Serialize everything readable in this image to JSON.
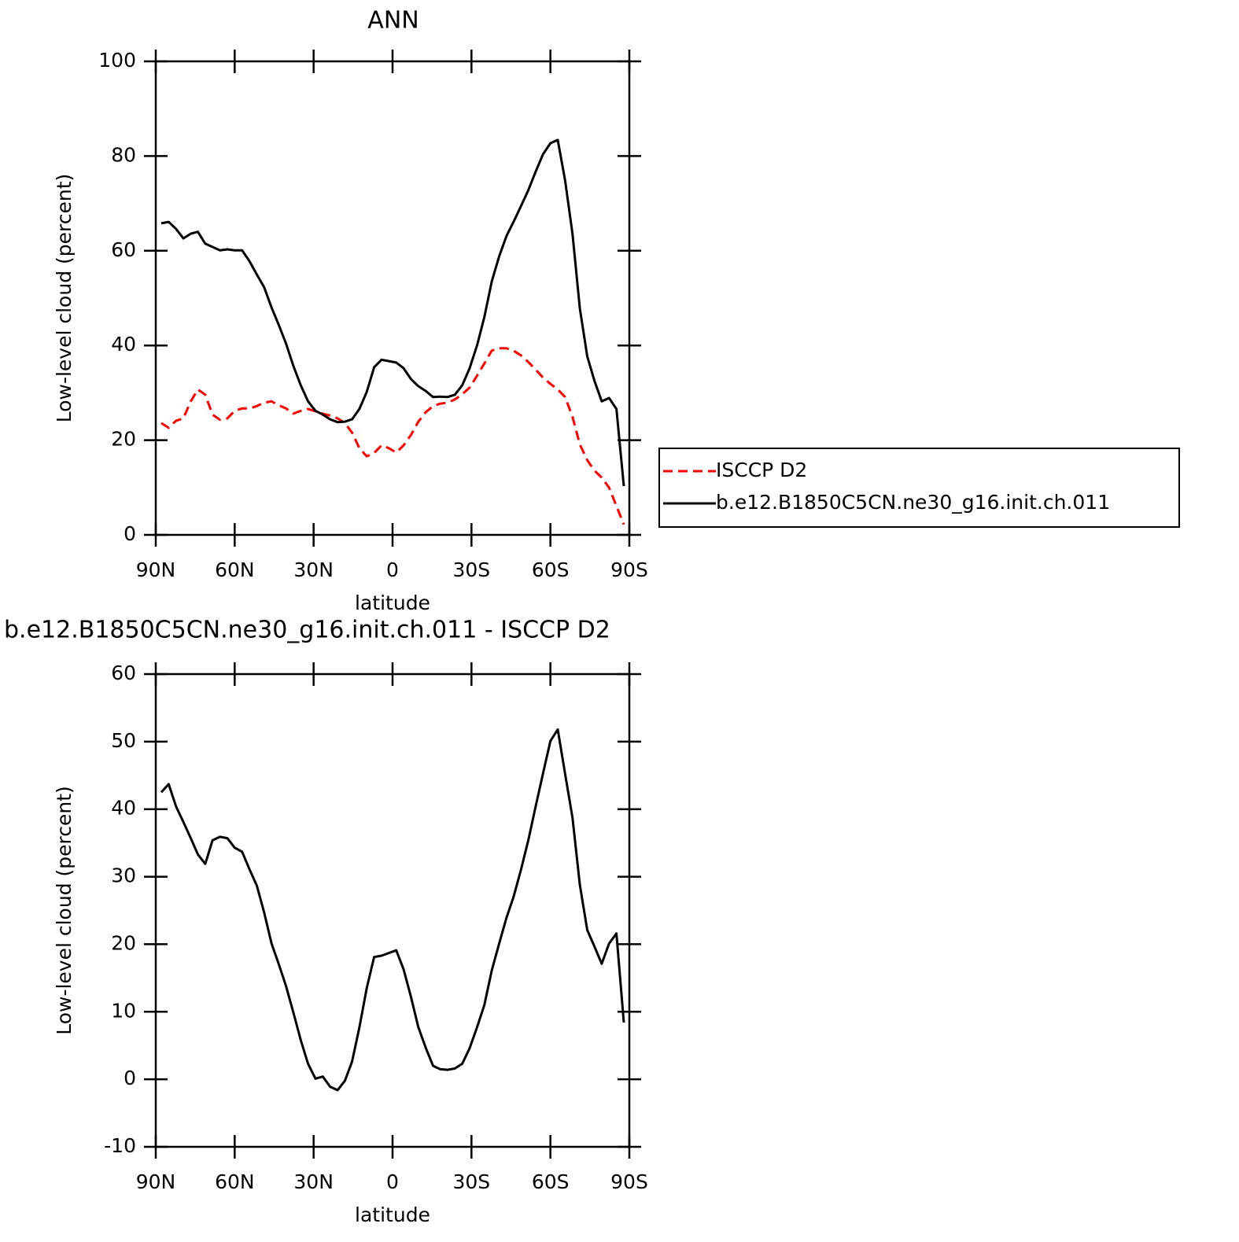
{
  "chart_data": [
    {
      "type": "line",
      "title": "ANN",
      "xlabel": "latitude",
      "ylabel": "Low-level cloud (percent)",
      "xlim": [
        90,
        -90
      ],
      "xticks": [
        {
          "value": 90,
          "label": "90N"
        },
        {
          "value": 60,
          "label": "60N"
        },
        {
          "value": 30,
          "label": "30N"
        },
        0,
        {
          "value": -30,
          "label": "30S"
        },
        {
          "value": -60,
          "label": "60S"
        },
        {
          "value": -90,
          "label": "90S"
        }
      ],
      "ylim": [
        0,
        100
      ],
      "yticks": [
        0,
        20,
        40,
        60,
        80,
        100
      ],
      "legend": "right",
      "x": [
        87.9,
        85.1,
        82.3,
        79.5,
        76.7,
        74.0,
        71.2,
        68.4,
        65.6,
        62.8,
        60.0,
        57.2,
        54.4,
        51.6,
        48.8,
        46.0,
        43.3,
        40.5,
        37.7,
        34.9,
        32.1,
        29.3,
        26.5,
        23.7,
        20.9,
        18.1,
        15.4,
        12.6,
        9.8,
        7.0,
        4.2,
        1.4,
        -1.4,
        -4.2,
        -7.0,
        -9.8,
        -12.6,
        -15.4,
        -18.1,
        -20.9,
        -23.7,
        -26.5,
        -29.3,
        -32.1,
        -34.9,
        -37.7,
        -40.5,
        -43.3,
        -46.0,
        -48.8,
        -51.6,
        -54.4,
        -57.2,
        -60.0,
        -62.8,
        -65.6,
        -68.4,
        -71.2,
        -74.0,
        -76.7,
        -79.5,
        -82.3,
        -85.1,
        -87.9
      ],
      "series": [
        {
          "name": "ISCCP D2",
          "color": "#ff0000",
          "dash": true,
          "values": [
            23.6,
            22.6,
            24.1,
            24.6,
            28.2,
            30.7,
            29.6,
            25.4,
            24.3,
            24.6,
            26.2,
            26.7,
            26.7,
            27.2,
            27.9,
            28.2,
            27.4,
            26.7,
            25.6,
            26.2,
            26.6,
            26.1,
            25.6,
            25.2,
            24.6,
            23.6,
            21.6,
            18.3,
            16.6,
            17.3,
            18.9,
            18.3,
            17.4,
            18.9,
            21.1,
            23.9,
            25.9,
            27.2,
            27.7,
            27.9,
            28.6,
            29.7,
            31.1,
            33.6,
            36.2,
            38.9,
            39.4,
            39.4,
            38.9,
            37.9,
            36.5,
            34.9,
            33.2,
            31.9,
            30.7,
            29.1,
            24.9,
            19.1,
            15.8,
            13.6,
            12.1,
            10.0,
            6.1,
            2.2
          ]
        },
        {
          "name": "b.e12.B1850C5CN.ne30_g16.init.ch.011",
          "color": "#000000",
          "dash": false,
          "values": [
            65.8,
            66.1,
            64.6,
            62.6,
            63.6,
            64.0,
            61.5,
            60.8,
            60.1,
            60.3,
            60.1,
            60.1,
            57.8,
            55.0,
            52.3,
            48.0,
            44.4,
            40.4,
            35.7,
            31.6,
            28.2,
            26.2,
            25.4,
            24.4,
            23.8,
            23.9,
            24.4,
            26.6,
            30.2,
            35.4,
            37.0,
            36.7,
            36.4,
            35.2,
            32.9,
            31.4,
            30.4,
            29.1,
            29.2,
            29.1,
            29.6,
            31.6,
            35.2,
            40.0,
            46.0,
            53.5,
            58.8,
            63.1,
            66.1,
            69.4,
            72.8,
            76.7,
            80.4,
            82.7,
            83.4,
            74.8,
            63.5,
            47.8,
            37.7,
            32.6,
            28.2,
            28.9,
            26.6,
            10.3
          ]
        }
      ]
    },
    {
      "type": "line",
      "title": "b.e12.B1850C5CN.ne30_g16.init.ch.011 - ISCCP D2",
      "xlabel": "latitude",
      "ylabel": "Low-level cloud (percent)",
      "xlim": [
        90,
        -90
      ],
      "xticks": [
        {
          "value": 90,
          "label": "90N"
        },
        {
          "value": 60,
          "label": "60N"
        },
        {
          "value": 30,
          "label": "30N"
        },
        0,
        {
          "value": -30,
          "label": "30S"
        },
        {
          "value": -60,
          "label": "60S"
        },
        {
          "value": -90,
          "label": "90S"
        }
      ],
      "ylim": [
        -10,
        60
      ],
      "yticks": [
        -10,
        0,
        10,
        20,
        30,
        40,
        50,
        60
      ],
      "x": [
        87.9,
        85.1,
        82.3,
        79.5,
        76.7,
        74.0,
        71.2,
        68.4,
        65.6,
        62.8,
        60.0,
        57.2,
        54.4,
        51.6,
        48.8,
        46.0,
        43.3,
        40.5,
        37.7,
        34.9,
        32.1,
        29.3,
        26.5,
        23.7,
        20.9,
        18.1,
        15.4,
        12.6,
        9.8,
        7.0,
        4.2,
        1.4,
        -1.4,
        -4.2,
        -7.0,
        -9.8,
        -12.6,
        -15.4,
        -18.1,
        -20.9,
        -23.7,
        -26.5,
        -29.3,
        -32.1,
        -34.9,
        -37.7,
        -40.5,
        -43.3,
        -46.0,
        -48.8,
        -51.6,
        -54.4,
        -57.2,
        -60.0,
        -62.8,
        -65.6,
        -68.4,
        -71.2,
        -74.0,
        -76.7,
        -79.5,
        -82.3,
        -85.1,
        -87.9
      ],
      "series": [
        {
          "color": "#000000",
          "dash": false,
          "values": [
            42.5,
            43.7,
            40.4,
            38.1,
            35.7,
            33.3,
            31.9,
            35.4,
            35.9,
            35.7,
            34.3,
            33.7,
            31.1,
            28.7,
            24.7,
            20.1,
            17.1,
            13.8,
            9.9,
            5.8,
            2.3,
            0.1,
            0.4,
            -1.1,
            -1.6,
            -0.2,
            2.6,
            7.7,
            13.5,
            18.1,
            18.3,
            18.7,
            19.1,
            16.3,
            12.2,
            7.7,
            4.7,
            2.0,
            1.5,
            1.4,
            1.6,
            2.3,
            4.6,
            7.7,
            11.0,
            16.1,
            20.1,
            23.9,
            27.0,
            31.0,
            35.4,
            40.4,
            45.3,
            50.1,
            51.8,
            45.2,
            38.7,
            28.8,
            22.1,
            19.7,
            17.1,
            20.1,
            21.6,
            8.4
          ]
        }
      ]
    }
  ]
}
